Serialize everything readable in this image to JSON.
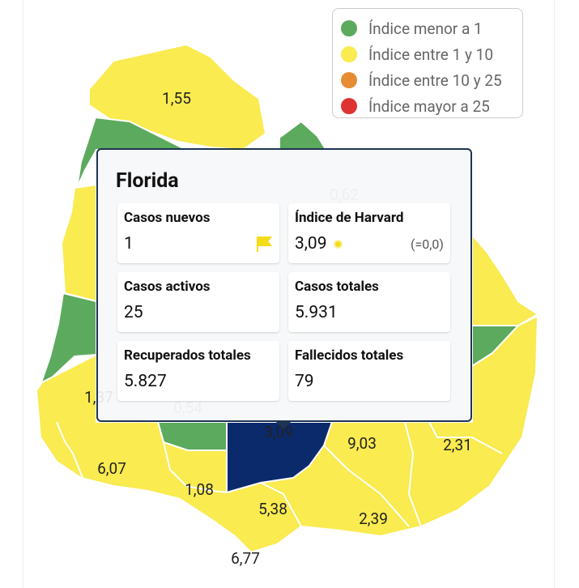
{
  "legend": {
    "items": [
      "Índice menor a 1",
      "Índice entre 1 y 10",
      "Índice entre 10 y 25",
      "Índice mayor a 25"
    ]
  },
  "map": {
    "labels": [
      "1,55",
      "0,62",
      "1,37",
      "0,54",
      "3,09",
      "9,03",
      "2,31",
      "6,07",
      "1,08",
      "5,38",
      "2,39",
      "6,77"
    ]
  },
  "tooltip": {
    "title": "Florida",
    "cards": [
      {
        "label": "Casos nuevos",
        "value": "1"
      },
      {
        "label": "Índice de Harvard",
        "value": "3,09",
        "note": "(=0,0)"
      },
      {
        "label": "Casos activos",
        "value": "25"
      },
      {
        "label": "Casos totales",
        "value": "5.931"
      },
      {
        "label": "Recuperados totales",
        "value": "5.827"
      },
      {
        "label": "Fallecidos totales",
        "value": "79"
      }
    ]
  }
}
